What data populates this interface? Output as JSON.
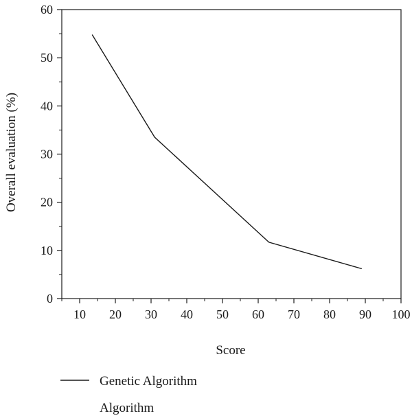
{
  "chart_data": {
    "type": "line",
    "title": "",
    "xlabel": "Score",
    "ylabel": "Overall evaluation (%)",
    "xlim": [
      5,
      100
    ],
    "ylim": [
      0,
      60
    ],
    "x_major_ticks": [
      10,
      20,
      30,
      40,
      50,
      60,
      70,
      80,
      90,
      100
    ],
    "y_major_ticks": [
      0,
      10,
      20,
      30,
      40,
      50,
      60
    ],
    "grid": false,
    "legend_position": "bottom-left",
    "series": [
      {
        "name": "Genetic Algorithm",
        "color": "#1a1a1a",
        "x": [
          13.5,
          31,
          63,
          89
        ],
        "y": [
          54.8,
          33.5,
          11.7,
          6.2
        ]
      },
      {
        "name": "Algorithm",
        "color": "#1a1a1a",
        "x": [],
        "y": []
      }
    ]
  }
}
